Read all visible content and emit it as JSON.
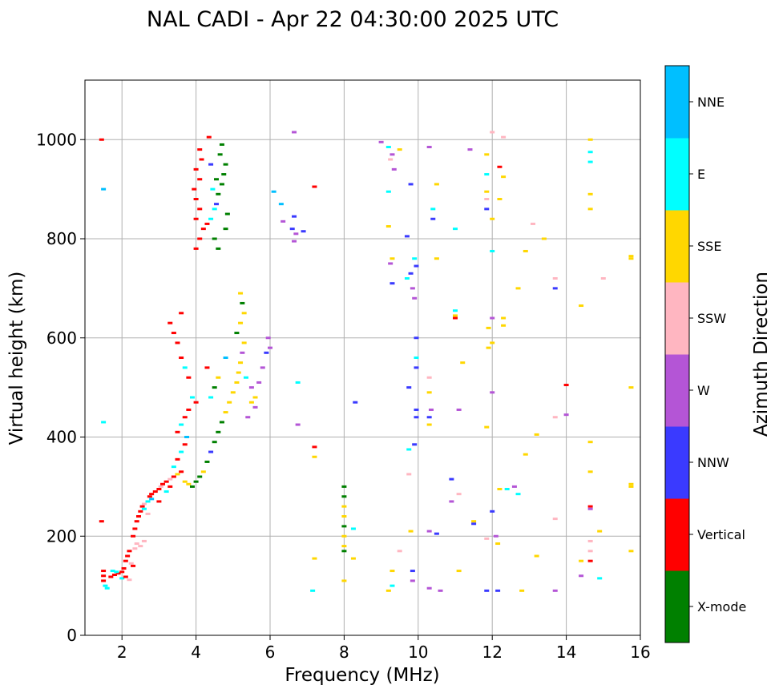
{
  "chart_data": {
    "type": "scatter",
    "title": "NAL CADI - Apr 22 04:30:00 2025 UTC",
    "xlabel": "Frequency (MHz)",
    "ylabel": "Virtual height (km)",
    "xlim": [
      1,
      16
    ],
    "ylim": [
      0,
      1120
    ],
    "xticks": [
      2,
      4,
      6,
      8,
      10,
      12,
      14,
      16
    ],
    "yticks": [
      0,
      200,
      400,
      600,
      800,
      1000
    ],
    "grid": true,
    "colorbar": {
      "label": "Azimuth Direction",
      "categories": [
        {
          "name": "X-mode",
          "color": "#008000"
        },
        {
          "name": "Vertical",
          "color": "#ff0000"
        },
        {
          "name": "NNW",
          "color": "#3a3aff"
        },
        {
          "name": "W",
          "color": "#b455d6"
        },
        {
          "name": "SSW",
          "color": "#ffb6c1"
        },
        {
          "name": "SSE",
          "color": "#ffd700"
        },
        {
          "name": "E",
          "color": "#00ffff"
        },
        {
          "name": "NNE",
          "color": "#00bfff"
        }
      ]
    },
    "points": [
      [
        1.5,
        120,
        1
      ],
      [
        1.5,
        110,
        1
      ],
      [
        1.55,
        100,
        6
      ],
      [
        1.5,
        130,
        1
      ],
      [
        1.6,
        95,
        6
      ],
      [
        1.45,
        230,
        1
      ],
      [
        1.5,
        430,
        6
      ],
      [
        1.45,
        1000,
        1
      ],
      [
        1.5,
        900,
        7
      ],
      [
        1.7,
        118,
        1
      ],
      [
        1.8,
        122,
        1
      ],
      [
        1.9,
        125,
        1
      ],
      [
        2.0,
        128,
        1
      ],
      [
        2.05,
        135,
        1
      ],
      [
        2.1,
        150,
        1
      ],
      [
        2.15,
        160,
        1
      ],
      [
        2.2,
        170,
        1
      ],
      [
        2.25,
        145,
        4
      ],
      [
        2.3,
        140,
        1
      ],
      [
        2.35,
        175,
        4
      ],
      [
        2.4,
        185,
        4
      ],
      [
        2.5,
        180,
        4
      ],
      [
        2.6,
        190,
        4
      ],
      [
        1.75,
        130,
        6
      ],
      [
        1.85,
        128,
        6
      ],
      [
        2.0,
        115,
        6
      ],
      [
        2.1,
        118,
        1
      ],
      [
        2.2,
        112,
        4
      ],
      [
        2.3,
        200,
        1
      ],
      [
        2.35,
        215,
        1
      ],
      [
        2.4,
        230,
        1
      ],
      [
        2.45,
        240,
        1
      ],
      [
        2.5,
        250,
        1
      ],
      [
        2.55,
        260,
        1
      ],
      [
        2.6,
        265,
        4
      ],
      [
        2.7,
        270,
        6
      ],
      [
        2.75,
        280,
        1
      ],
      [
        2.8,
        285,
        1
      ],
      [
        2.9,
        290,
        1
      ],
      [
        3.0,
        295,
        1
      ],
      [
        3.05,
        300,
        4
      ],
      [
        3.1,
        305,
        1
      ],
      [
        3.2,
        310,
        1
      ],
      [
        3.3,
        315,
        4
      ],
      [
        3.4,
        320,
        1
      ],
      [
        3.5,
        325,
        5
      ],
      [
        3.6,
        330,
        1
      ],
      [
        3.7,
        310,
        5
      ],
      [
        3.8,
        305,
        5
      ],
      [
        3.9,
        300,
        0
      ],
      [
        4.0,
        310,
        0
      ],
      [
        4.1,
        320,
        0
      ],
      [
        2.6,
        255,
        6
      ],
      [
        2.7,
        245,
        4
      ],
      [
        2.8,
        275,
        7
      ],
      [
        3.0,
        270,
        1
      ],
      [
        3.2,
        290,
        6
      ],
      [
        3.3,
        300,
        1
      ],
      [
        3.4,
        340,
        6
      ],
      [
        3.5,
        355,
        1
      ],
      [
        3.6,
        370,
        6
      ],
      [
        3.7,
        385,
        1
      ],
      [
        3.75,
        400,
        7
      ],
      [
        3.5,
        410,
        1
      ],
      [
        3.6,
        425,
        6
      ],
      [
        3.7,
        440,
        1
      ],
      [
        3.8,
        455,
        1
      ],
      [
        3.9,
        480,
        6
      ],
      [
        4.0,
        470,
        1
      ],
      [
        3.8,
        520,
        1
      ],
      [
        3.7,
        540,
        6
      ],
      [
        3.6,
        560,
        1
      ],
      [
        3.5,
        590,
        1
      ],
      [
        3.4,
        610,
        1
      ],
      [
        3.3,
        630,
        1
      ],
      [
        3.6,
        650,
        1
      ],
      [
        4.2,
        330,
        5
      ],
      [
        4.3,
        350,
        0
      ],
      [
        4.4,
        370,
        2
      ],
      [
        4.5,
        390,
        0
      ],
      [
        4.6,
        410,
        0
      ],
      [
        4.7,
        430,
        0
      ],
      [
        4.8,
        450,
        5
      ],
      [
        4.9,
        470,
        5
      ],
      [
        5.0,
        490,
        5
      ],
      [
        5.1,
        510,
        5
      ],
      [
        5.15,
        530,
        5
      ],
      [
        5.2,
        550,
        5
      ],
      [
        5.25,
        570,
        3
      ],
      [
        5.3,
        590,
        5
      ],
      [
        5.1,
        610,
        0
      ],
      [
        5.2,
        630,
        5
      ],
      [
        5.3,
        650,
        5
      ],
      [
        5.25,
        670,
        0
      ],
      [
        5.2,
        690,
        5
      ],
      [
        5.35,
        520,
        6
      ],
      [
        5.5,
        500,
        3
      ],
      [
        5.6,
        480,
        5
      ],
      [
        5.7,
        510,
        3
      ],
      [
        5.8,
        540,
        3
      ],
      [
        5.9,
        570,
        2
      ],
      [
        5.95,
        600,
        3
      ],
      [
        6.0,
        580,
        3
      ],
      [
        5.4,
        440,
        3
      ],
      [
        5.5,
        470,
        5
      ],
      [
        5.6,
        460,
        3
      ],
      [
        4.5,
        500,
        0
      ],
      [
        4.3,
        540,
        1
      ],
      [
        4.4,
        480,
        6
      ],
      [
        4.6,
        520,
        5
      ],
      [
        4.8,
        560,
        7
      ],
      [
        4.0,
        780,
        1
      ],
      [
        4.1,
        800,
        1
      ],
      [
        4.2,
        820,
        1
      ],
      [
        4.0,
        840,
        1
      ],
      [
        4.1,
        860,
        1
      ],
      [
        4.0,
        880,
        1
      ],
      [
        3.95,
        900,
        1
      ],
      [
        4.1,
        920,
        1
      ],
      [
        4.0,
        940,
        1
      ],
      [
        4.15,
        960,
        1
      ],
      [
        4.1,
        980,
        1
      ],
      [
        4.35,
        1005,
        1
      ],
      [
        4.3,
        830,
        1
      ],
      [
        4.4,
        840,
        6
      ],
      [
        4.5,
        860,
        6
      ],
      [
        4.55,
        870,
        2
      ],
      [
        4.6,
        890,
        0
      ],
      [
        4.7,
        910,
        0
      ],
      [
        4.75,
        930,
        0
      ],
      [
        4.8,
        950,
        0
      ],
      [
        4.65,
        970,
        0
      ],
      [
        4.7,
        990,
        0
      ],
      [
        4.5,
        800,
        0
      ],
      [
        4.6,
        780,
        0
      ],
      [
        4.8,
        820,
        0
      ],
      [
        4.85,
        850,
        0
      ],
      [
        4.4,
        950,
        2
      ],
      [
        4.55,
        920,
        0
      ],
      [
        4.45,
        900,
        6
      ],
      [
        6.1,
        895,
        7
      ],
      [
        6.3,
        870,
        7
      ],
      [
        6.35,
        835,
        3
      ],
      [
        6.6,
        820,
        2
      ],
      [
        6.7,
        810,
        3
      ],
      [
        6.65,
        845,
        2
      ],
      [
        6.9,
        815,
        2
      ],
      [
        6.65,
        795,
        3
      ],
      [
        6.65,
        1015,
        3
      ],
      [
        6.75,
        425,
        3
      ],
      [
        6.75,
        510,
        6
      ],
      [
        7.2,
        905,
        1
      ],
      [
        7.2,
        380,
        1
      ],
      [
        7.2,
        360,
        5
      ],
      [
        7.2,
        155,
        5
      ],
      [
        7.15,
        90,
        6
      ],
      [
        8.0,
        300,
        0
      ],
      [
        8.0,
        280,
        0
      ],
      [
        8.0,
        260,
        5
      ],
      [
        8.0,
        240,
        5
      ],
      [
        8.0,
        220,
        0
      ],
      [
        8.0,
        200,
        5
      ],
      [
        8.0,
        180,
        5
      ],
      [
        8.0,
        170,
        0
      ],
      [
        8.0,
        110,
        5
      ],
      [
        8.25,
        215,
        6
      ],
      [
        8.25,
        155,
        5
      ],
      [
        8.3,
        470,
        2
      ],
      [
        9.0,
        995,
        3
      ],
      [
        9.2,
        985,
        6
      ],
      [
        9.3,
        970,
        3
      ],
      [
        9.5,
        980,
        5
      ],
      [
        9.25,
        960,
        4
      ],
      [
        9.35,
        940,
        3
      ],
      [
        9.8,
        910,
        2
      ],
      [
        9.2,
        825,
        5
      ],
      [
        9.2,
        895,
        6
      ],
      [
        9.7,
        805,
        2
      ],
      [
        9.25,
        750,
        3
      ],
      [
        9.3,
        760,
        5
      ],
      [
        9.3,
        710,
        2
      ],
      [
        9.7,
        720,
        6
      ],
      [
        9.8,
        730,
        2
      ],
      [
        9.9,
        760,
        6
      ],
      [
        9.85,
        700,
        3
      ],
      [
        9.95,
        745,
        2
      ],
      [
        9.9,
        680,
        3
      ],
      [
        9.95,
        600,
        2
      ],
      [
        9.95,
        560,
        6
      ],
      [
        9.95,
        540,
        2
      ],
      [
        9.75,
        500,
        2
      ],
      [
        9.95,
        455,
        2
      ],
      [
        9.95,
        440,
        2
      ],
      [
        9.9,
        385,
        2
      ],
      [
        9.75,
        375,
        6
      ],
      [
        9.75,
        325,
        4
      ],
      [
        9.8,
        210,
        5
      ],
      [
        9.5,
        170,
        4
      ],
      [
        9.3,
        130,
        5
      ],
      [
        9.85,
        130,
        2
      ],
      [
        9.3,
        100,
        6
      ],
      [
        9.85,
        110,
        3
      ],
      [
        9.2,
        90,
        5
      ],
      [
        10.3,
        985,
        3
      ],
      [
        10.4,
        840,
        2
      ],
      [
        10.4,
        860,
        6
      ],
      [
        10.5,
        910,
        5
      ],
      [
        10.3,
        520,
        4
      ],
      [
        10.3,
        490,
        5
      ],
      [
        10.35,
        455,
        3
      ],
      [
        10.3,
        440,
        2
      ],
      [
        10.3,
        425,
        5
      ],
      [
        10.5,
        760,
        5
      ],
      [
        10.3,
        210,
        3
      ],
      [
        10.5,
        205,
        2
      ],
      [
        10.3,
        95,
        3
      ],
      [
        10.6,
        90,
        3
      ],
      [
        11.0,
        820,
        6
      ],
      [
        11.0,
        655,
        6
      ],
      [
        11.0,
        640,
        1
      ],
      [
        11.0,
        645,
        5
      ],
      [
        11.2,
        550,
        5
      ],
      [
        11.1,
        455,
        3
      ],
      [
        10.9,
        315,
        2
      ],
      [
        11.1,
        285,
        4
      ],
      [
        10.9,
        270,
        3
      ],
      [
        11.1,
        130,
        5
      ],
      [
        11.5,
        230,
        5
      ],
      [
        11.5,
        225,
        2
      ],
      [
        11.4,
        980,
        3
      ],
      [
        11.85,
        970,
        5
      ],
      [
        11.85,
        930,
        6
      ],
      [
        11.85,
        895,
        5
      ],
      [
        11.85,
        880,
        4
      ],
      [
        11.85,
        860,
        2
      ],
      [
        12.0,
        1015,
        4
      ],
      [
        12.3,
        1005,
        4
      ],
      [
        12.2,
        945,
        1
      ],
      [
        12.3,
        925,
        5
      ],
      [
        12.2,
        880,
        5
      ],
      [
        12.0,
        840,
        5
      ],
      [
        12.0,
        775,
        6
      ],
      [
        12.0,
        640,
        3
      ],
      [
        11.9,
        620,
        5
      ],
      [
        12.3,
        640,
        5
      ],
      [
        12.3,
        625,
        5
      ],
      [
        11.9,
        580,
        5
      ],
      [
        12.0,
        590,
        5
      ],
      [
        12.0,
        490,
        3
      ],
      [
        11.85,
        420,
        5
      ],
      [
        12.2,
        295,
        5
      ],
      [
        12.4,
        295,
        6
      ],
      [
        12.6,
        300,
        3
      ],
      [
        12.7,
        285,
        6
      ],
      [
        12.0,
        250,
        2
      ],
      [
        12.1,
        200,
        3
      ],
      [
        11.85,
        195,
        4
      ],
      [
        12.15,
        185,
        5
      ],
      [
        11.85,
        90,
        2
      ],
      [
        12.15,
        90,
        2
      ],
      [
        12.8,
        90,
        5
      ],
      [
        12.7,
        700,
        5
      ],
      [
        12.9,
        775,
        5
      ],
      [
        13.1,
        830,
        4
      ],
      [
        13.4,
        800,
        5
      ],
      [
        13.2,
        405,
        5
      ],
      [
        12.9,
        365,
        5
      ],
      [
        13.2,
        160,
        5
      ],
      [
        13.7,
        90,
        3
      ],
      [
        13.7,
        720,
        4
      ],
      [
        13.7,
        700,
        2
      ],
      [
        14.0,
        505,
        1
      ],
      [
        14.0,
        445,
        3
      ],
      [
        13.7,
        440,
        4
      ],
      [
        13.7,
        235,
        4
      ],
      [
        14.4,
        665,
        5
      ],
      [
        14.4,
        150,
        5
      ],
      [
        14.4,
        120,
        3
      ],
      [
        14.65,
        1000,
        5
      ],
      [
        14.65,
        975,
        6
      ],
      [
        14.65,
        955,
        6
      ],
      [
        14.65,
        890,
        5
      ],
      [
        14.65,
        860,
        5
      ],
      [
        14.65,
        390,
        5
      ],
      [
        14.65,
        330,
        5
      ],
      [
        14.65,
        260,
        1
      ],
      [
        14.65,
        255,
        3
      ],
      [
        14.65,
        190,
        4
      ],
      [
        14.65,
        170,
        4
      ],
      [
        14.65,
        150,
        1
      ],
      [
        15.0,
        720,
        4
      ],
      [
        14.9,
        210,
        5
      ],
      [
        14.9,
        115,
        6
      ],
      [
        15.75,
        765,
        5
      ],
      [
        15.75,
        760,
        5
      ],
      [
        15.75,
        500,
        5
      ],
      [
        15.75,
        305,
        5
      ],
      [
        15.75,
        300,
        5
      ],
      [
        15.75,
        170,
        5
      ]
    ]
  }
}
